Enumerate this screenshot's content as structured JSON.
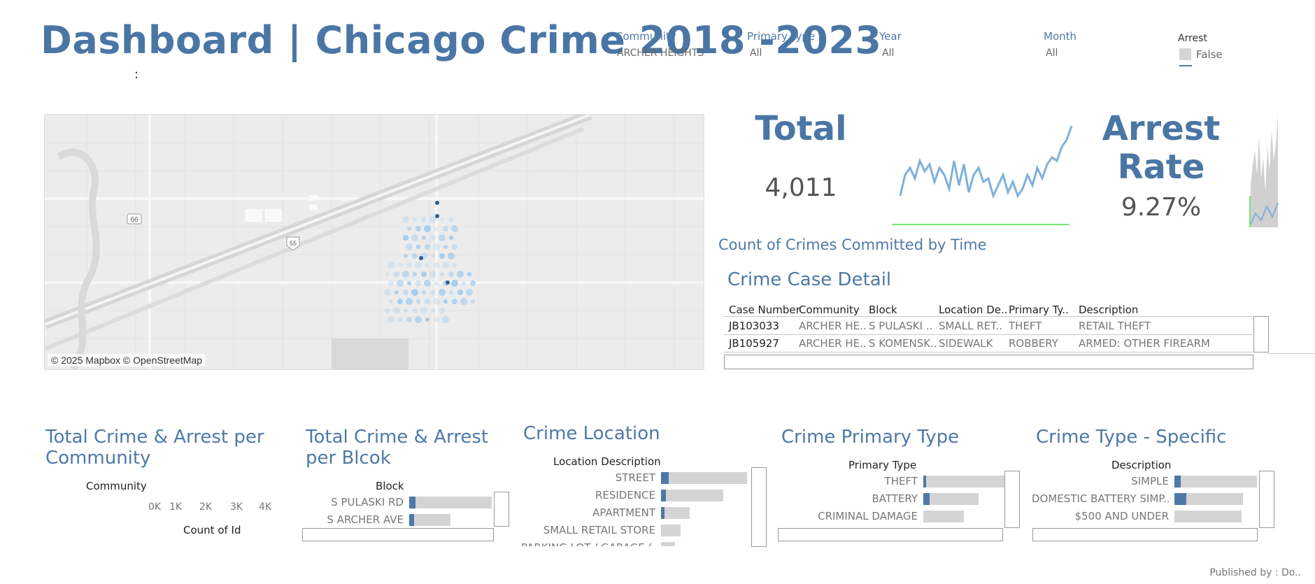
{
  "header": {
    "title": "Dashboard | Chicago Crime 2018 -2023",
    "sub": ":"
  },
  "filters": {
    "community": {
      "label": "Community",
      "value": "ARCHER HEIGHTS"
    },
    "primary_type": {
      "label": "Primary Type",
      "value": "All"
    },
    "year": {
      "label": "Year",
      "value": "All"
    },
    "month": {
      "label": "Month",
      "value": "All"
    },
    "arrest": {
      "label": "Arrest",
      "value": "False"
    }
  },
  "map": {
    "attribution": "© 2025 Mapbox © OpenStreetMap",
    "shield_66": "66",
    "shield_55": "55"
  },
  "kpi": {
    "total_label": "Total",
    "total_value": "4,011",
    "arrest_label_1": "Arrest",
    "arrest_label_2": "Rate",
    "arrest_value": "9.27%"
  },
  "time_chart": {
    "title": "Count of Crimes Committed by Time"
  },
  "case_detail": {
    "title": "Crime Case Detail",
    "headers": [
      "Case Number",
      "Community",
      "Block",
      "Location De..",
      "Primary Ty..",
      "Description"
    ],
    "rows": [
      [
        "JB103033",
        "ARCHER HE..",
        "S PULASKI ..",
        "SMALL RET..",
        "THEFT",
        "RETAIL THEFT"
      ],
      [
        "JB105927",
        "ARCHER HE..",
        "S KOMENSK..",
        "SIDEWALK",
        "ROBBERY",
        "ARMED: OTHER FIREARM"
      ]
    ]
  },
  "community_chart": {
    "title_1": "Total Crime & Arrest per",
    "title_2": "Community",
    "column": "Community",
    "ticks": [
      "0K",
      "1K",
      "2K",
      "3K",
      "4K"
    ],
    "axis_label": "Count of Id"
  },
  "block_chart": {
    "title_1": "Total Crime & Arrest",
    "title_2": "per Blcok",
    "column": "Block",
    "items": [
      {
        "label": "S PULASKI RD",
        "total": 1.0,
        "arrest": 0.08
      },
      {
        "label": "S ARCHER AVE",
        "total": 0.5,
        "arrest": 0.06
      }
    ]
  },
  "location_chart": {
    "title": "Crime Location",
    "column": "Location Description",
    "items": [
      {
        "label": "STREET",
        "total": 1.0,
        "arrest": 0.09
      },
      {
        "label": "RESIDENCE",
        "total": 0.72,
        "arrest": 0.06
      },
      {
        "label": "APARTMENT",
        "total": 0.33,
        "arrest": 0.04
      },
      {
        "label": "SMALL RETAIL STORE",
        "total": 0.23,
        "arrest": 0.0
      },
      {
        "label": "PARKING LOT / GARAGE (..",
        "total": 0.16,
        "arrest": 0.0
      }
    ]
  },
  "primary_chart": {
    "title": "Crime Primary Type",
    "column": "Primary Type",
    "items": [
      {
        "label": "THEFT",
        "total": 1.0,
        "arrest": 0.03
      },
      {
        "label": "BATTERY",
        "total": 0.67,
        "arrest": 0.08
      },
      {
        "label": "CRIMINAL DAMAGE",
        "total": 0.49,
        "arrest": 0.0
      }
    ]
  },
  "specific_chart": {
    "title": "Crime Type - Specific",
    "column": "Description",
    "items": [
      {
        "label": "SIMPLE",
        "total": 1.0,
        "arrest": 0.08
      },
      {
        "label": "DOMESTIC BATTERY SIMP..",
        "total": 0.83,
        "arrest": 0.14
      },
      {
        "label": "$500 AND UNDER",
        "total": 0.81,
        "arrest": 0.0
      }
    ]
  },
  "footer": {
    "prefix": "Published by ",
    "suffix": ": Do.."
  },
  "colors": {
    "accent": "#4e79a7",
    "bar_bg": "#d4d4d4",
    "map_bg": "#ececec"
  }
}
